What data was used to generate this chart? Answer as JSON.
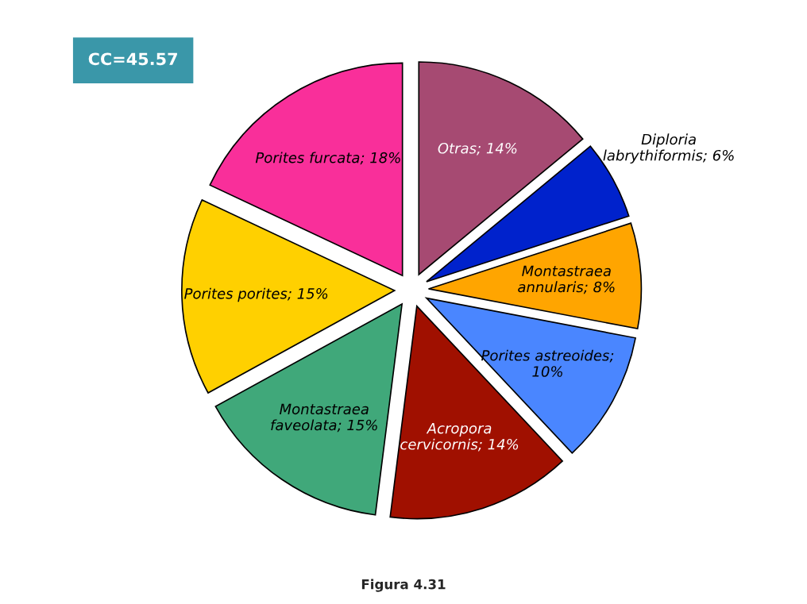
{
  "chart_data": {
    "type": "pie",
    "categories": [
      "Otras; 14%",
      "Diploria labrythiformis; 6%",
      "Montastraea annularis; 8%",
      "Porites astreoides; 10%",
      "Acropora cervicornis; 14%",
      "Montastraea faveolata; 15%",
      "Porites porites; 15%",
      "Porites furcata; 18%"
    ],
    "values": [
      14,
      6,
      8,
      10,
      14,
      15,
      15,
      18
    ],
    "colors": [
      "#a64a72",
      "#0022cc",
      "#ffa500",
      "#4a86ff",
      "#a01000",
      "#40a87a",
      "#ffd000",
      "#f92f9a"
    ],
    "annotations": [
      "CC=45.57",
      "Figura 4.31"
    ]
  }
}
